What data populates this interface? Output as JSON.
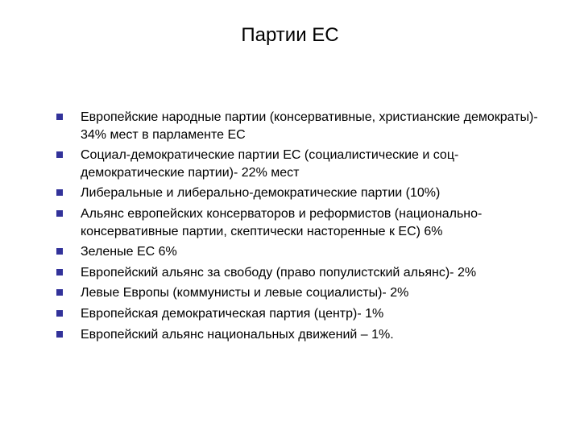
{
  "slide": {
    "title": "Партии ЕС",
    "title_fontsize": 24,
    "title_color": "#000000",
    "background_color": "#ffffff",
    "bullet_color": "#32329a",
    "bullet_size": 8,
    "text_fontsize": 16,
    "text_color": "#000000",
    "items": [
      "Европейские народные партии (консервативные, христианские демократы)- 34% мест в парламенте ЕС",
      "Социал-демократические партии ЕС (социалистические и соц-демократические партии)- 22% мест",
      "Либеральные и либерально-демократические партии  (10%)",
      " Альянс европейских консерваторов и реформистов (национально-консервативные партии, скептически насторенные к ЕС) 6%",
      "Зеленые ЕС 6%",
      "Европейский альянс за свободу (право популистский альянс)- 2%",
      "Левые Европы (коммунисты и левые социалисты)- 2%",
      "Европейская демократическая партия (центр)- 1%",
      "Европейский альянс национальных движений – 1%."
    ]
  }
}
